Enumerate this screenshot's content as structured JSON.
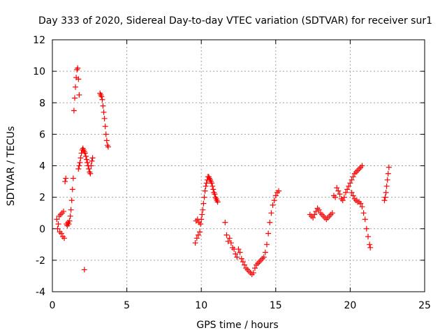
{
  "chart_data": {
    "type": "scatter",
    "title": "Day 333 of 2020, Sidereal Day-to-day VTEC variation (SDTVAR) for receiver sur1",
    "xlabel": "GPS time / hours",
    "ylabel": "SDTVAR / TECUs",
    "xlim": [
      0,
      25
    ],
    "ylim": [
      -4,
      12
    ],
    "xticks": [
      0,
      5,
      10,
      15,
      20,
      25
    ],
    "yticks": [
      -4,
      -2,
      0,
      2,
      4,
      6,
      8,
      10,
      12
    ],
    "xtick_labels": [
      "0",
      "5",
      "10",
      "15",
      "20",
      "25"
    ],
    "ytick_labels": [
      "-4",
      "-2",
      "0",
      "2",
      "4",
      "6",
      "8",
      "10",
      "12"
    ],
    "grid": true,
    "marker": "plus",
    "color": "#ff0000",
    "series": [
      {
        "name": "segment-1",
        "x": [
          0.3,
          0.35,
          0.4,
          0.45,
          0.5,
          0.55,
          0.6,
          0.65,
          0.7,
          0.75,
          0.8,
          0.85,
          0.9,
          0.95,
          1.0,
          1.05,
          1.1,
          1.15,
          1.2,
          1.25,
          1.3,
          1.35,
          1.4,
          1.45,
          1.5,
          1.55,
          1.6,
          1.65,
          1.7,
          1.75,
          1.8
        ],
        "y": [
          0.6,
          0.0,
          0.3,
          0.8,
          -0.2,
          0.9,
          -0.3,
          1.0,
          -0.5,
          1.1,
          -0.6,
          3.0,
          3.2,
          0.3,
          0.2,
          0.4,
          0.3,
          0.5,
          0.8,
          1.2,
          1.8,
          2.5,
          3.2,
          7.5,
          8.3,
          9.0,
          9.6,
          10.1,
          10.2,
          9.5,
          8.5
        ]
      },
      {
        "name": "segment-2",
        "x": [
          1.75,
          1.8,
          1.85,
          1.9,
          1.95,
          2.0,
          2.05,
          2.1,
          2.15,
          2.2,
          2.25,
          2.3,
          2.35,
          2.4,
          2.45,
          2.5,
          2.55,
          2.6,
          2.65,
          2.7
        ],
        "y": [
          3.8,
          4.0,
          4.2,
          4.5,
          4.8,
          5.0,
          5.1,
          5.0,
          4.9,
          4.8,
          4.6,
          4.4,
          4.2,
          4.0,
          3.8,
          3.6,
          3.5,
          4.0,
          4.3,
          4.5
        ]
      },
      {
        "name": "segment-3",
        "x": [
          2.15
        ],
        "y": [
          -2.6
        ]
      },
      {
        "name": "segment-4",
        "x": [
          3.2,
          3.25,
          3.3,
          3.35,
          3.4,
          3.45,
          3.5,
          3.55,
          3.6,
          3.65,
          3.7,
          3.75
        ],
        "y": [
          8.6,
          8.5,
          8.4,
          8.2,
          7.8,
          7.4,
          7.0,
          6.5,
          6.0,
          5.6,
          5.3,
          5.2
        ]
      },
      {
        "name": "segment-5",
        "x": [
          9.6,
          9.65,
          9.7,
          9.75,
          9.8,
          9.85,
          9.9,
          9.95,
          10.0,
          10.05,
          10.1,
          10.15,
          10.2,
          10.25,
          10.3,
          10.35,
          10.4,
          10.45,
          10.5,
          10.55,
          10.6,
          10.65,
          10.7,
          10.75,
          10.8,
          10.85,
          10.9,
          10.95,
          11.0,
          11.05,
          11.1
        ],
        "y": [
          -0.9,
          0.5,
          -0.6,
          0.6,
          -0.4,
          0.4,
          -0.2,
          0.3,
          0.6,
          0.9,
          1.2,
          1.6,
          2.0,
          2.4,
          2.7,
          2.9,
          3.1,
          3.3,
          3.3,
          3.2,
          3.1,
          3.0,
          2.9,
          2.7,
          2.5,
          2.3,
          2.2,
          2.0,
          1.9,
          1.8,
          1.7
        ]
      },
      {
        "name": "segment-6",
        "x": [
          11.6,
          11.7,
          11.8,
          11.9,
          12.0,
          12.1,
          12.2,
          12.3,
          12.4,
          12.5,
          12.6,
          12.7,
          12.8,
          12.9,
          13.0,
          13.1,
          13.2,
          13.3,
          13.4,
          13.5,
          13.6,
          13.7,
          13.8,
          13.9,
          14.0,
          14.1,
          14.2,
          14.3,
          14.4,
          14.5,
          14.6,
          14.7,
          14.8,
          14.9,
          15.0,
          15.1,
          15.2
        ],
        "y": [
          0.4,
          -0.4,
          -0.8,
          -0.6,
          -0.9,
          -1.2,
          -1.3,
          -1.6,
          -1.8,
          -1.3,
          -1.5,
          -1.9,
          -2.1,
          -2.3,
          -2.5,
          -2.6,
          -2.7,
          -2.8,
          -2.9,
          -2.8,
          -2.5,
          -2.3,
          -2.2,
          -2.1,
          -2.0,
          -1.9,
          -1.8,
          -1.5,
          -1.0,
          -0.3,
          0.4,
          1.0,
          1.5,
          1.8,
          2.1,
          2.3,
          2.4
        ]
      },
      {
        "name": "segment-7",
        "x": [
          17.3,
          17.4,
          17.5,
          17.6,
          17.7,
          17.8,
          17.9,
          18.0,
          18.1,
          18.2,
          18.3,
          18.4,
          18.5,
          18.6,
          18.7,
          18.8
        ],
        "y": [
          0.9,
          0.8,
          0.7,
          0.9,
          1.1,
          1.3,
          1.2,
          1.0,
          0.9,
          0.8,
          0.7,
          0.6,
          0.7,
          0.8,
          0.9,
          1.0
        ]
      },
      {
        "name": "segment-8",
        "x": [
          18.9,
          19.0,
          19.1,
          19.2,
          19.3,
          19.4,
          19.5,
          19.6,
          19.7,
          19.8,
          19.9,
          20.0,
          20.1,
          20.2,
          20.3,
          20.4,
          20.5,
          20.6,
          20.7,
          20.8
        ],
        "y": [
          2.1,
          2.0,
          2.6,
          2.4,
          2.2,
          1.9,
          1.8,
          2.0,
          2.3,
          2.5,
          2.7,
          2.9,
          3.1,
          3.3,
          3.5,
          3.6,
          3.7,
          3.8,
          3.9,
          4.0
        ]
      },
      {
        "name": "segment-9",
        "x": [
          20.1,
          20.2,
          20.3,
          20.4,
          20.5,
          20.6,
          20.7,
          20.8,
          20.9,
          21.0,
          21.1,
          21.2,
          21.3,
          21.35
        ],
        "y": [
          2.3,
          2.1,
          1.9,
          1.8,
          1.7,
          1.7,
          1.6,
          1.4,
          1.0,
          0.6,
          0.0,
          -0.5,
          -1.0,
          -1.2
        ]
      },
      {
        "name": "segment-10",
        "x": [
          22.3,
          22.35,
          22.4,
          22.45,
          22.5,
          22.55,
          22.6
        ],
        "y": [
          1.8,
          2.0,
          2.3,
          2.7,
          3.1,
          3.5,
          3.9
        ]
      }
    ]
  }
}
